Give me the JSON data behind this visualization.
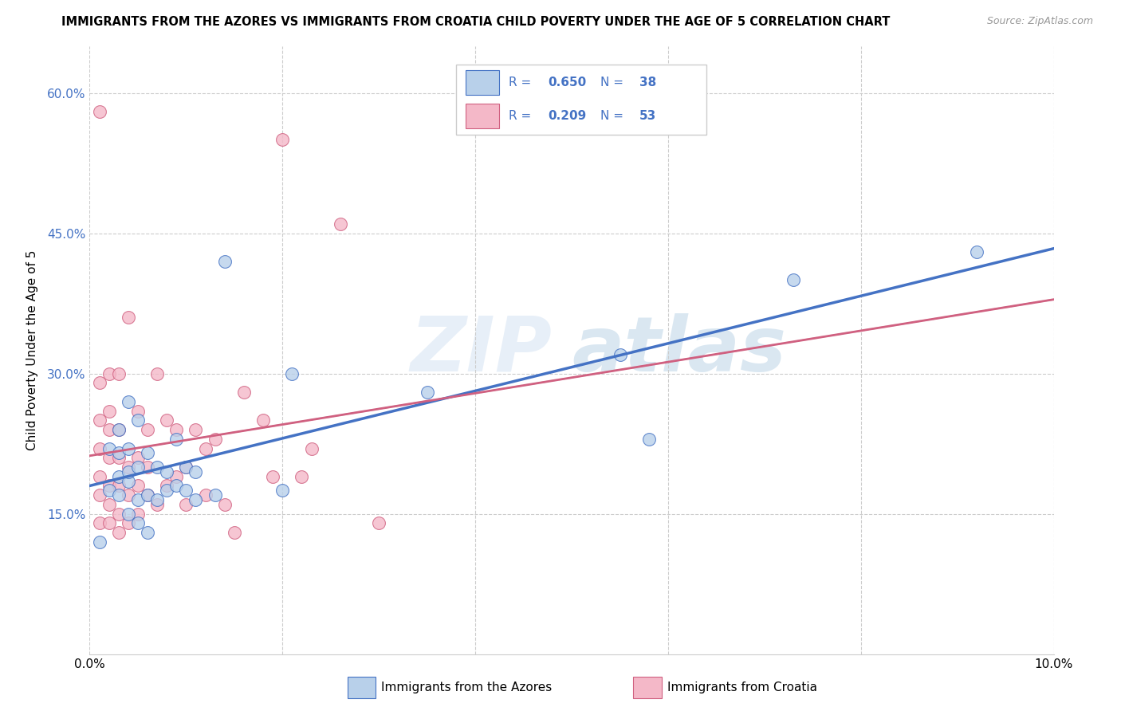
{
  "title": "IMMIGRANTS FROM THE AZORES VS IMMIGRANTS FROM CROATIA CHILD POVERTY UNDER THE AGE OF 5 CORRELATION CHART",
  "source": "Source: ZipAtlas.com",
  "ylabel": "Child Poverty Under the Age of 5",
  "xlim": [
    0.0,
    0.1
  ],
  "ylim": [
    0.0,
    0.65
  ],
  "yticks": [
    0.15,
    0.3,
    0.45,
    0.6
  ],
  "ytick_labels": [
    "15.0%",
    "30.0%",
    "45.0%",
    "60.0%"
  ],
  "xticks": [
    0.0,
    0.02,
    0.04,
    0.06,
    0.08,
    0.1
  ],
  "xtick_labels": [
    "0.0%",
    "",
    "",
    "",
    "",
    "10.0%"
  ],
  "watermark_zip": "ZIP",
  "watermark_atlas": "atlas",
  "azores_fill": "#b8d0ea",
  "azores_edge": "#4472c4",
  "croatia_fill": "#f4b8c8",
  "croatia_edge": "#d06080",
  "R_azores": 0.65,
  "N_azores": 38,
  "R_croatia": 0.209,
  "N_croatia": 53,
  "legend_text_color": "#4472c4",
  "azores_x": [
    0.001,
    0.002,
    0.002,
    0.003,
    0.003,
    0.003,
    0.003,
    0.004,
    0.004,
    0.004,
    0.004,
    0.004,
    0.005,
    0.005,
    0.005,
    0.005,
    0.006,
    0.006,
    0.006,
    0.007,
    0.007,
    0.008,
    0.008,
    0.009,
    0.009,
    0.01,
    0.01,
    0.011,
    0.011,
    0.013,
    0.014,
    0.02,
    0.021,
    0.035,
    0.055,
    0.058,
    0.073,
    0.092
  ],
  "azores_y": [
    0.12,
    0.175,
    0.22,
    0.17,
    0.19,
    0.215,
    0.24,
    0.15,
    0.185,
    0.195,
    0.22,
    0.27,
    0.14,
    0.165,
    0.2,
    0.25,
    0.13,
    0.17,
    0.215,
    0.165,
    0.2,
    0.175,
    0.195,
    0.18,
    0.23,
    0.175,
    0.2,
    0.165,
    0.195,
    0.17,
    0.42,
    0.175,
    0.3,
    0.28,
    0.32,
    0.23,
    0.4,
    0.43
  ],
  "croatia_x": [
    0.001,
    0.001,
    0.001,
    0.001,
    0.001,
    0.001,
    0.002,
    0.002,
    0.002,
    0.002,
    0.002,
    0.002,
    0.002,
    0.003,
    0.003,
    0.003,
    0.003,
    0.003,
    0.003,
    0.004,
    0.004,
    0.004,
    0.004,
    0.005,
    0.005,
    0.005,
    0.005,
    0.006,
    0.006,
    0.006,
    0.007,
    0.007,
    0.008,
    0.008,
    0.009,
    0.009,
    0.01,
    0.01,
    0.011,
    0.012,
    0.012,
    0.013,
    0.014,
    0.015,
    0.016,
    0.018,
    0.019,
    0.02,
    0.022,
    0.023,
    0.026,
    0.03,
    0.001
  ],
  "croatia_y": [
    0.14,
    0.17,
    0.19,
    0.22,
    0.25,
    0.29,
    0.14,
    0.16,
    0.18,
    0.21,
    0.24,
    0.26,
    0.3,
    0.13,
    0.15,
    0.18,
    0.21,
    0.24,
    0.3,
    0.14,
    0.17,
    0.2,
    0.36,
    0.15,
    0.18,
    0.21,
    0.26,
    0.17,
    0.2,
    0.24,
    0.3,
    0.16,
    0.18,
    0.25,
    0.19,
    0.24,
    0.16,
    0.2,
    0.24,
    0.17,
    0.22,
    0.23,
    0.16,
    0.13,
    0.28,
    0.25,
    0.19,
    0.55,
    0.19,
    0.22,
    0.46,
    0.14,
    0.58
  ]
}
